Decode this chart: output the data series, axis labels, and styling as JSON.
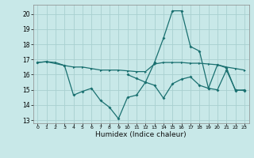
{
  "xlabel": "Humidex (Indice chaleur)",
  "bg_color": "#c8e8e8",
  "grid_color": "#a8d0d0",
  "line_color": "#1a7070",
  "xlim": [
    -0.5,
    23.5
  ],
  "ylim": [
    12.8,
    20.6
  ],
  "yticks": [
    13,
    14,
    15,
    16,
    17,
    18,
    19,
    20
  ],
  "xticks": [
    0,
    1,
    2,
    3,
    4,
    5,
    6,
    7,
    8,
    9,
    10,
    11,
    12,
    13,
    14,
    15,
    16,
    17,
    18,
    19,
    20,
    21,
    22,
    23
  ],
  "xtick_labels": [
    "0",
    "1",
    "2",
    "3",
    "4",
    "5",
    "6",
    "7",
    "8",
    "9",
    "10",
    "11",
    "12",
    "13",
    "14",
    "15",
    "16",
    "17",
    "18",
    "19",
    "20",
    "21",
    "22",
    "23"
  ],
  "line1_x": [
    0,
    1,
    2,
    3,
    4,
    5,
    6,
    7,
    8,
    9,
    10,
    11,
    12,
    13,
    14,
    15,
    16,
    17,
    18,
    19,
    20,
    21,
    22,
    23
  ],
  "line1_y": [
    16.8,
    16.85,
    16.8,
    16.6,
    16.5,
    16.5,
    16.4,
    16.3,
    16.3,
    16.3,
    16.25,
    16.2,
    16.2,
    16.7,
    16.8,
    16.8,
    16.8,
    16.75,
    16.75,
    16.7,
    16.65,
    16.5,
    16.4,
    16.3
  ],
  "line2_x": [
    0,
    1,
    3,
    4,
    5,
    6,
    7,
    8,
    9,
    10,
    11,
    12,
    13,
    14,
    15,
    16,
    17,
    18,
    19,
    20,
    21,
    22,
    23
  ],
  "line2_y": [
    16.8,
    16.85,
    16.6,
    14.65,
    14.9,
    15.1,
    14.3,
    13.85,
    13.1,
    14.5,
    14.65,
    15.5,
    16.8,
    18.4,
    20.2,
    20.2,
    17.85,
    17.55,
    15.1,
    16.65,
    16.45,
    14.95,
    15.0
  ],
  "line3_x": [
    10,
    11,
    12,
    13,
    14,
    15,
    16,
    17,
    18,
    19,
    20,
    21,
    22,
    23
  ],
  "line3_y": [
    16.0,
    15.75,
    15.5,
    15.3,
    14.45,
    15.4,
    15.7,
    15.85,
    15.3,
    15.1,
    15.0,
    16.3,
    15.0,
    14.95
  ]
}
